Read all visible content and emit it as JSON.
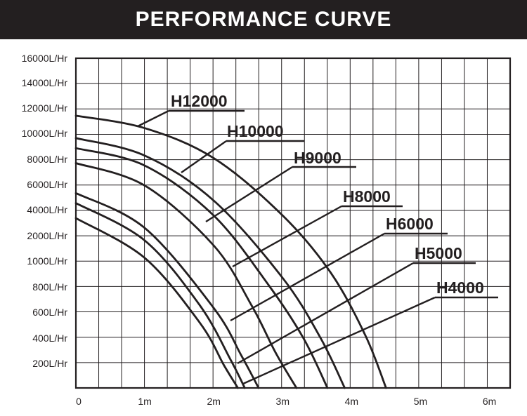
{
  "chart_data": {
    "type": "line",
    "title": "PERFORMANCE CURVE",
    "xlabel": "",
    "ylabel": "",
    "x_ticks": [
      "0",
      "1m",
      "2m",
      "3m",
      "4m",
      "5m",
      "6m"
    ],
    "y_ticks": [
      "16000L/Hr",
      "14000L/Hr",
      "12000L/Hr",
      "10000L/Hr",
      "8000L/Hr",
      "6000L/Hr",
      "4000L/Hr",
      "2000L/Hr",
      "1000L/Hr",
      "800L/Hr",
      "600L/Hr",
      "400L/Hr",
      "200L/Hr"
    ],
    "y_axis_note": "non-uniform category axis: tick labels listed top to bottom; y values below are tick-level positions from the 0 baseline (0 = baseline, 13 = 16000L/Hr)",
    "xlim": [
      0,
      6.3
    ],
    "ylim": [
      0,
      13.2
    ],
    "grid": true,
    "series": [
      {
        "name": "H12000",
        "x": [
          0,
          1,
          2,
          3,
          3.7,
          4.2,
          4.5
        ],
        "y": [
          10.9,
          10.4,
          9.2,
          6.9,
          4.6,
          2.1,
          0
        ]
      },
      {
        "name": "H10000",
        "x": [
          0,
          1,
          2,
          3,
          3.55,
          3.9
        ],
        "y": [
          10.0,
          9.3,
          7.5,
          4.4,
          2.0,
          0
        ]
      },
      {
        "name": "H9000",
        "x": [
          0,
          1,
          2,
          2.8,
          3.3,
          3.65
        ],
        "y": [
          9.6,
          8.9,
          6.9,
          4.1,
          2.0,
          0
        ]
      },
      {
        "name": "H8000",
        "x": [
          0,
          1,
          2,
          2.55,
          2.9,
          3.2
        ],
        "y": [
          9.0,
          8.1,
          5.7,
          3.3,
          1.4,
          0
        ]
      },
      {
        "name": "H6000",
        "x": [
          0,
          1,
          2,
          2.4,
          2.65
        ],
        "y": [
          7.8,
          6.4,
          3.2,
          1.3,
          0
        ]
      },
      {
        "name": "H5000",
        "x": [
          0,
          1,
          1.8,
          2.25,
          2.45
        ],
        "y": [
          7.4,
          5.9,
          3.3,
          1.1,
          0
        ]
      },
      {
        "name": "H4000",
        "x": [
          0,
          1,
          1.8,
          2.15,
          2.35
        ],
        "y": [
          6.8,
          5.2,
          2.6,
          0.9,
          0
        ]
      }
    ]
  }
}
